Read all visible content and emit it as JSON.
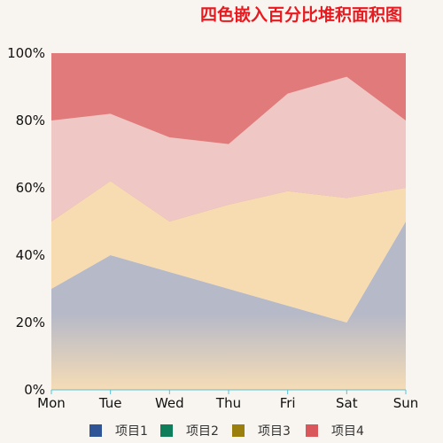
{
  "chart_data": {
    "type": "area",
    "title": "四色嵌入百分比堆积面积图",
    "categories": [
      "Mon",
      "Tue",
      "Wed",
      "Thu",
      "Fri",
      "Sat",
      "Sun"
    ],
    "y_ticks": [
      "0%",
      "20%",
      "40%",
      "60%",
      "80%",
      "100%"
    ],
    "ylim": [
      0,
      100
    ],
    "stacked_percent": true,
    "series": [
      {
        "name": "项目1",
        "values": [
          30,
          40,
          35,
          30,
          25,
          20,
          50
        ],
        "area_color": "#b6b9c8",
        "legend_color": "#2f5597"
      },
      {
        "name": "项目2",
        "values": [
          0,
          0,
          0,
          0,
          0,
          0,
          0
        ],
        "area_color": "#0e7f5a",
        "legend_color": "#0e7f5a"
      },
      {
        "name": "项目3",
        "values": [
          20,
          22,
          15,
          25,
          34,
          37,
          10
        ],
        "area_color": "#f7dcb1",
        "legend_color": "#9b7f0d"
      },
      {
        "name": "项目4",
        "values": [
          50,
          38,
          50,
          45,
          41,
          43,
          40
        ],
        "area_color": "#e07a7b",
        "legend_color": "#d9575a"
      }
    ],
    "upper_band": {
      "top_of_band": [
        80,
        82,
        75,
        73,
        88,
        93,
        80
      ],
      "color": "#efc8c5"
    },
    "gradient_bottom_color": "#f5dcb6",
    "axis_color": "#5bc0d6",
    "grid": false,
    "legend_position": "bottom"
  }
}
